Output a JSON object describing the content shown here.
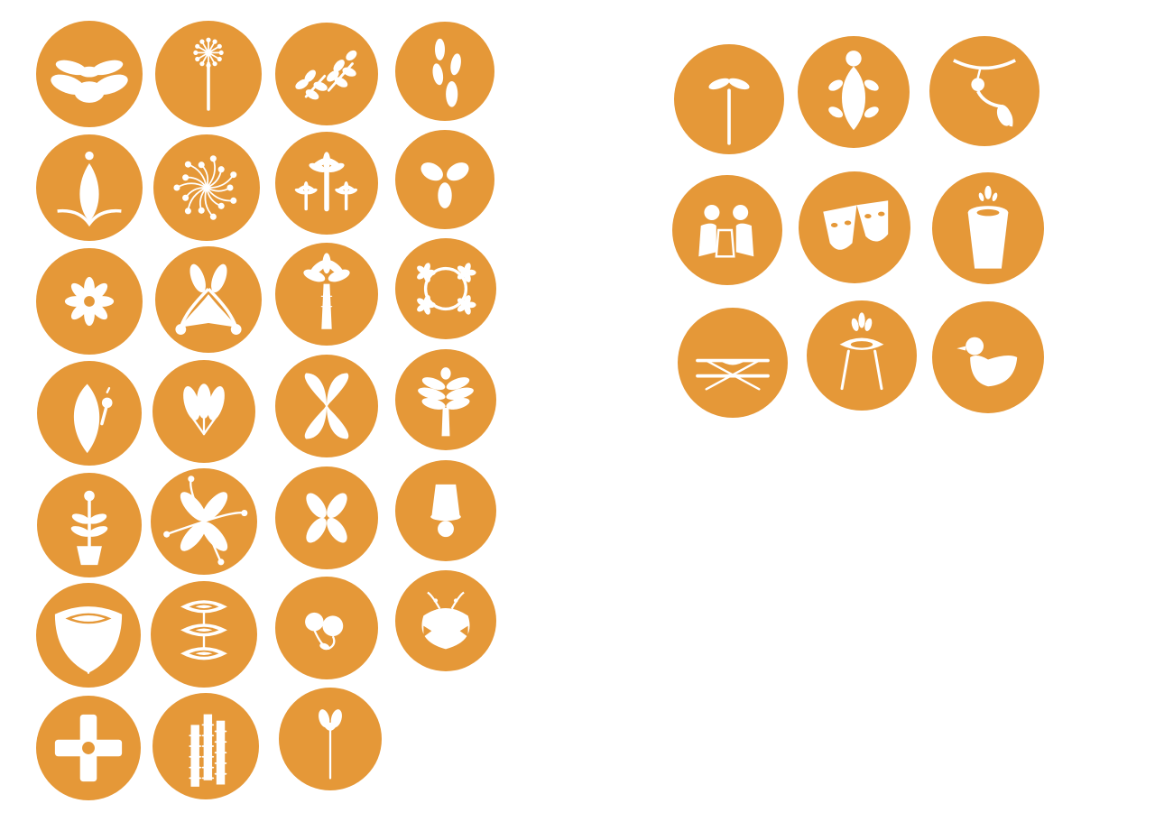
{
  "palette": {
    "circle_fill": "#E59838",
    "glyph_fill": "#FFFFFF",
    "background": "#FFFFFF"
  },
  "nature_icon_set": {
    "icons": [
      "leafy-plant-icon",
      "dandelion-icon",
      "branches-icon",
      "seed-pods-icon",
      "bud-icon",
      "dandelion-burst-icon",
      "palm-trees-icon",
      "three-petal-sprout-icon",
      "star-flower-icon",
      "bloom-icon",
      "palm-tree-icon",
      "flower-wreath-icon",
      "cactus-icon",
      "leaf-fan-icon",
      "butterfly-flower-icon",
      "fern-tree-icon",
      "potted-plant-icon",
      "exotic-flower-icon",
      "small-flower-icon",
      "bell-icon",
      "tulip-eye-icon",
      "stacked-eyes-icon",
      "berries-icon",
      "beetle-icon",
      "cross-flower-icon",
      "bamboo-icon",
      "flower-stem-icon"
    ]
  },
  "activity_icon_set": {
    "icons": [
      "seedling-icon",
      "turtle-icon",
      "monkey-icon",
      "people-reading-icon",
      "theatre-masks-icon",
      "drink-cup-icon",
      "picnic-table-icon",
      "campfire-grill-icon",
      "duck-icon"
    ]
  }
}
